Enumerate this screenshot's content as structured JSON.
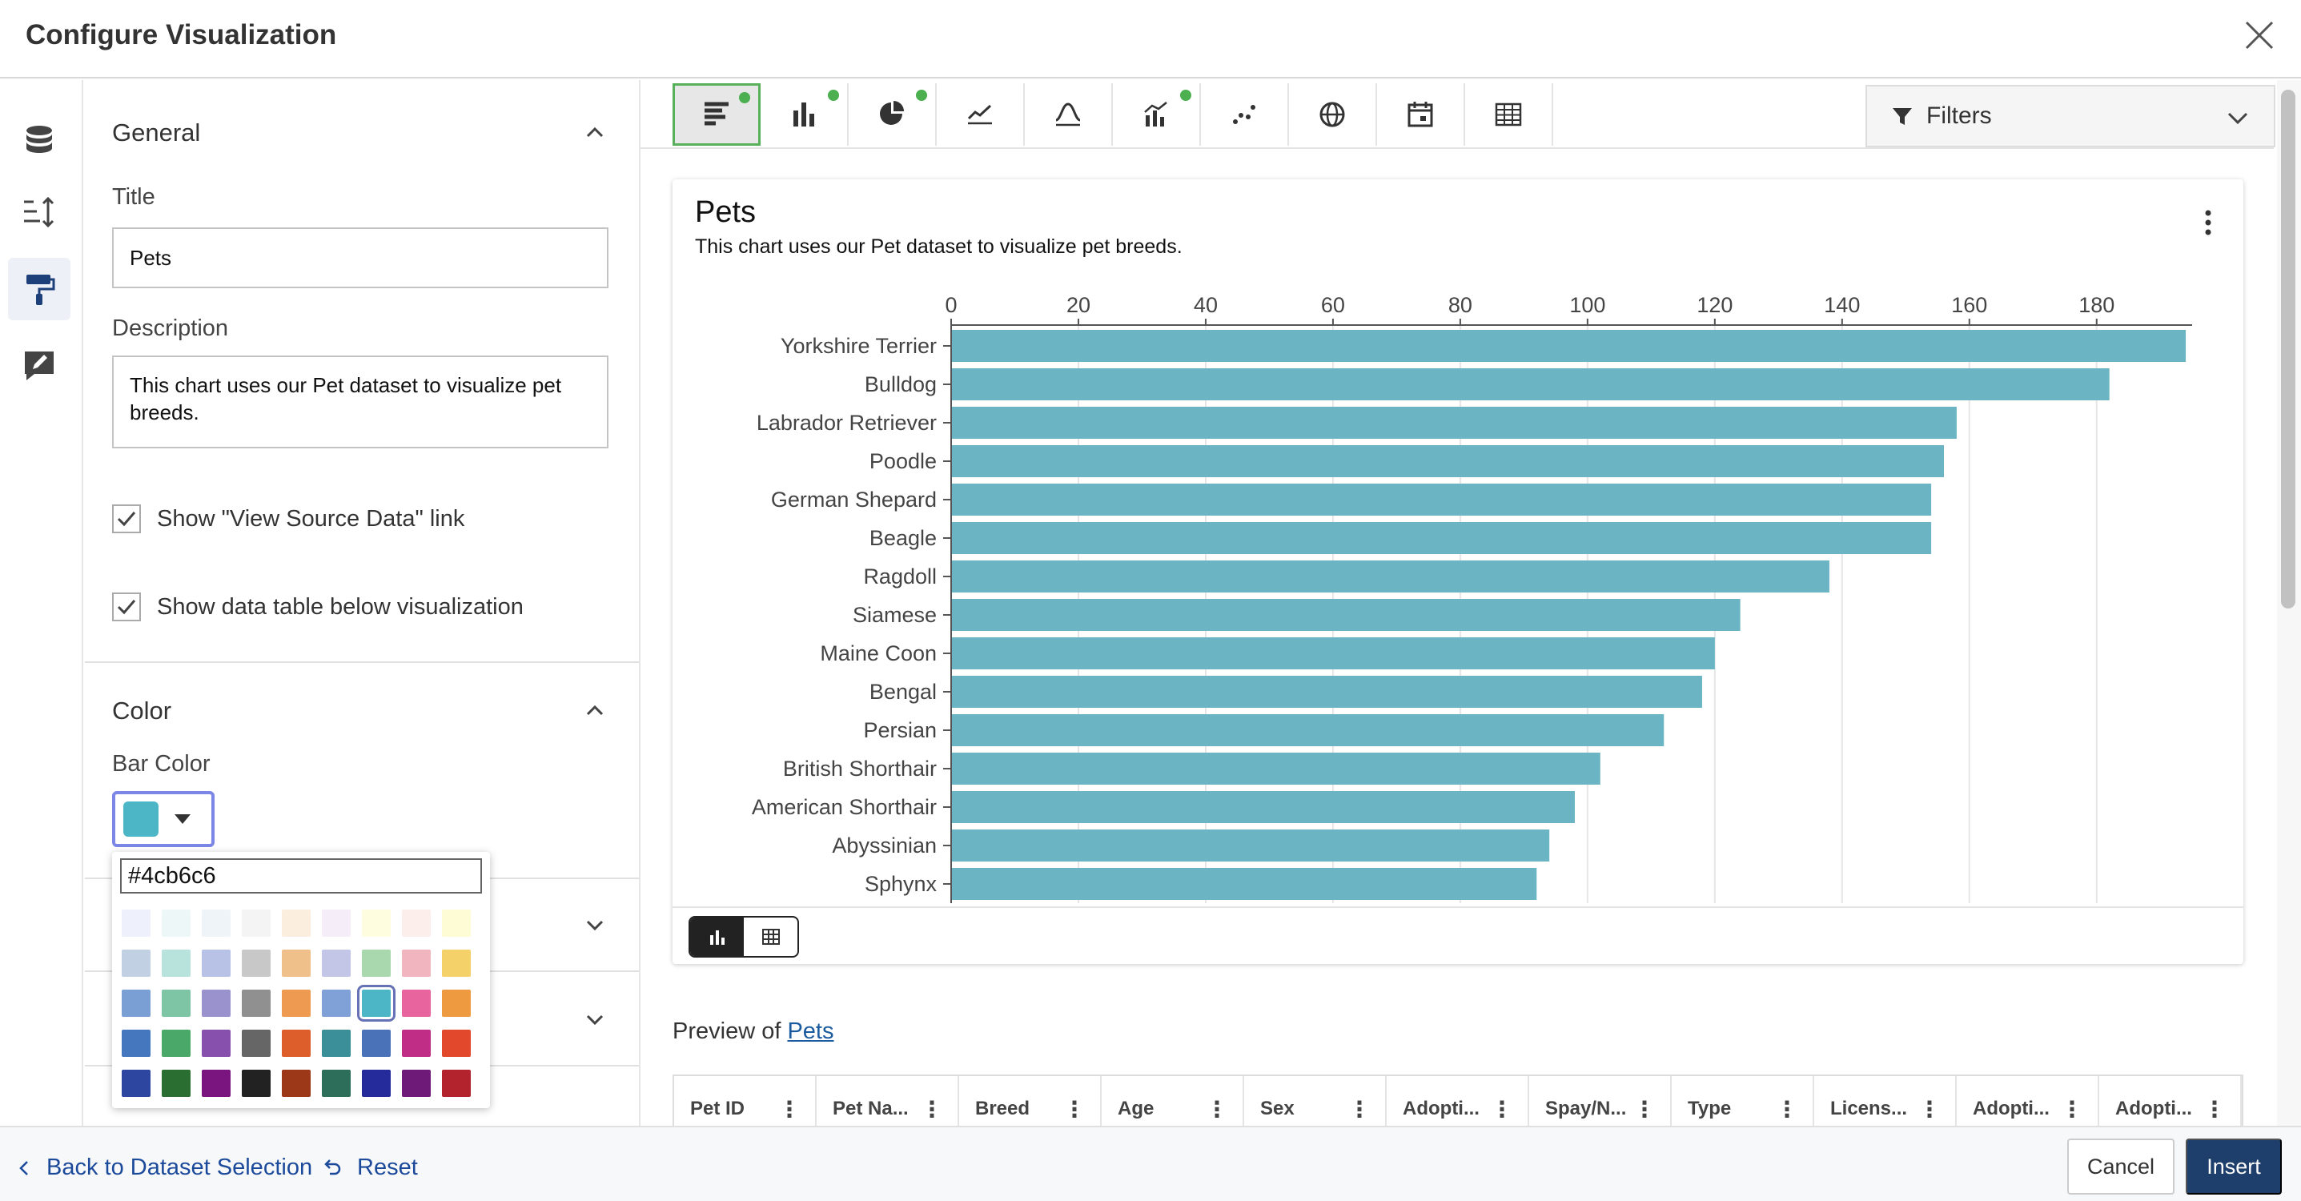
{
  "header": {
    "title": "Configure Visualization",
    "close_icon": "close-icon"
  },
  "rail": {
    "items": [
      {
        "name": "database-icon",
        "active": false
      },
      {
        "name": "sort-order-icon",
        "active": false
      },
      {
        "name": "paint-roller-icon",
        "active": true
      },
      {
        "name": "annotation-edit-icon",
        "active": false
      }
    ]
  },
  "panel": {
    "general": {
      "heading": "General",
      "title_label": "Title",
      "title_value": "Pets",
      "description_label": "Description",
      "description_value": "This chart uses our Pet dataset to visualize pet breeds.",
      "checkbox_source": {
        "label": "Show \"View Source Data\" link",
        "checked": true
      },
      "checkbox_table": {
        "label": "Show data table below visualization",
        "checked": true
      }
    },
    "color": {
      "heading": "Color",
      "bar_color_label": "Bar Color",
      "bar_color": "#4cb6c6",
      "hex_value": "#4cb6c6",
      "palette": [
        [
          "#eef1fb",
          "#eef7f7",
          "#eef4f8",
          "#f4f4f4",
          "#fbeede",
          "#f5eef8",
          "#fefde0",
          "#fcefeb",
          "#fdfcd5"
        ],
        [
          "#c1d0e3",
          "#b8e2dc",
          "#b7c2e6",
          "#c8c8c8",
          "#f0c08a",
          "#c4c6e8",
          "#a9d8ae",
          "#f0b5be",
          "#f5d169"
        ],
        [
          "#7a9fd4",
          "#7ec5a6",
          "#9a92cc",
          "#909090",
          "#ee9a50",
          "#7fa1d7",
          "#4cb6c6",
          "#e8649e",
          "#ee9a40"
        ],
        [
          "#4477be",
          "#4aa868",
          "#8750ac",
          "#666666",
          "#dd5e2a",
          "#3b8f98",
          "#4a72b8",
          "#c02d86",
          "#e2482c"
        ],
        [
          "#2d47a0",
          "#2a6e32",
          "#7a1580",
          "#222222",
          "#9c3818",
          "#2c6e5a",
          "#252b9a",
          "#6e1a78",
          "#b3232e"
        ]
      ],
      "selected_swatch": [
        2,
        6
      ]
    }
  },
  "toolbar": {
    "buttons": [
      {
        "name": "horizontal-bar-icon",
        "active": true,
        "dot": true
      },
      {
        "name": "vertical-bar-icon",
        "active": false,
        "dot": true
      },
      {
        "name": "pie-icon",
        "active": false,
        "dot": true
      },
      {
        "name": "line-chart-icon",
        "active": false,
        "dot": false
      },
      {
        "name": "bell-curve-icon",
        "active": false,
        "dot": false
      },
      {
        "name": "combo-chart-icon",
        "active": false,
        "dot": true
      },
      {
        "name": "scatter-icon",
        "active": false,
        "dot": false
      },
      {
        "name": "globe-icon",
        "active": false,
        "dot": false
      },
      {
        "name": "calendar-icon",
        "active": false,
        "dot": false
      },
      {
        "name": "table-icon",
        "active": false,
        "dot": false
      }
    ],
    "filters_label": "Filters"
  },
  "chart_data": {
    "type": "bar",
    "orientation": "horizontal",
    "title": "Pets",
    "subtitle": "This chart uses our Pet dataset to visualize pet breeds.",
    "categories": [
      "Yorkshire Terrier",
      "Bulldog",
      "Labrador Retriever",
      "Poodle",
      "German Shepard",
      "Beagle",
      "Ragdoll",
      "Siamese",
      "Maine Coon",
      "Bengal",
      "Persian",
      "British Shorthair",
      "American Shorthair",
      "Abyssinian",
      "Sphynx"
    ],
    "values": [
      194,
      182,
      158,
      156,
      154,
      154,
      138,
      124,
      120,
      118,
      112,
      102,
      98,
      94,
      92
    ],
    "xlim": [
      0,
      195
    ],
    "xticks": [
      0,
      20,
      40,
      60,
      80,
      100,
      120,
      140,
      160,
      180
    ],
    "color": "#6ab4c3",
    "grid": true
  },
  "preview": {
    "prefix": "Preview of ",
    "link": "Pets",
    "columns": [
      "Pet ID",
      "Pet Na...",
      "Breed",
      "Age",
      "Sex",
      "Adopti...",
      "Spay/N...",
      "Type",
      "Licens...",
      "Adopti...",
      "Adopti..."
    ]
  },
  "footer": {
    "back_label": "Back to Dataset Selection",
    "reset_label": "Reset",
    "cancel_label": "Cancel",
    "insert_label": "Insert"
  }
}
